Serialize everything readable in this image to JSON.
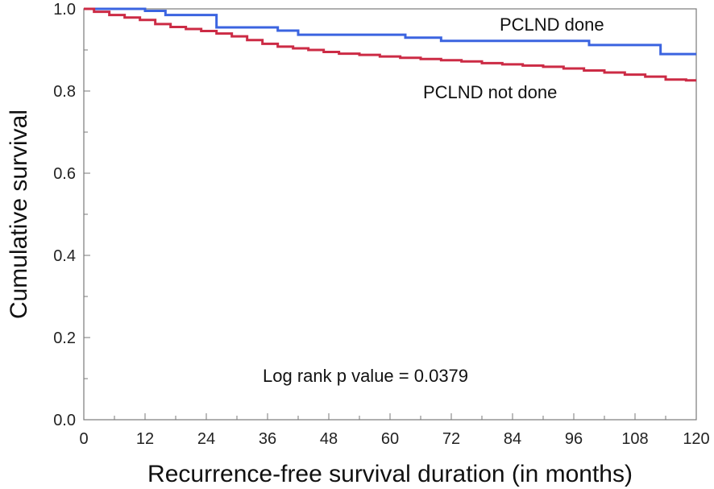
{
  "chart_data": {
    "type": "line",
    "title": "",
    "xlabel": "Recurrence-free survival duration (in months)",
    "ylabel": "Cumulative survival",
    "xlim": [
      0,
      120
    ],
    "ylim": [
      0.0,
      1.0
    ],
    "x_ticks": [
      0,
      12,
      24,
      36,
      48,
      60,
      72,
      84,
      96,
      108,
      120
    ],
    "x_tick_labels": [
      "0",
      "12",
      "24",
      "36",
      "48",
      "60",
      "72",
      "84",
      "96",
      "108",
      "120"
    ],
    "y_ticks": [
      0.0,
      0.2,
      0.4,
      0.6,
      0.8,
      1.0
    ],
    "y_tick_labels": [
      "0.0",
      "0.2",
      "0.4",
      "0.6",
      "0.8",
      "1.0"
    ],
    "grid": false,
    "series": [
      {
        "name": "PCLND done",
        "color": "#3b64e0",
        "step": true,
        "x": [
          0,
          12,
          16,
          26,
          38,
          42,
          63,
          70,
          99,
          113,
          120
        ],
        "values": [
          1.0,
          0.995,
          0.985,
          0.955,
          0.947,
          0.937,
          0.93,
          0.922,
          0.912,
          0.89,
          0.89
        ]
      },
      {
        "name": "PCLND not done",
        "color": "#cc2b45",
        "step": true,
        "x": [
          0,
          2,
          5,
          8,
          11,
          14,
          17,
          20,
          23,
          26,
          29,
          32,
          35,
          38,
          41,
          44,
          47,
          50,
          54,
          58,
          62,
          66,
          70,
          74,
          78,
          82,
          86,
          90,
          94,
          98,
          102,
          106,
          110,
          114,
          118,
          120
        ],
        "values": [
          1.0,
          0.993,
          0.985,
          0.979,
          0.973,
          0.963,
          0.956,
          0.951,
          0.946,
          0.94,
          0.933,
          0.924,
          0.915,
          0.908,
          0.904,
          0.9,
          0.895,
          0.891,
          0.888,
          0.884,
          0.881,
          0.878,
          0.875,
          0.872,
          0.868,
          0.865,
          0.862,
          0.859,
          0.855,
          0.85,
          0.845,
          0.84,
          0.835,
          0.828,
          0.826,
          0.826
        ]
      }
    ],
    "annotations": {
      "done_label": "PCLND done",
      "not_done_label": "PCLND not done",
      "pvalue": "Log rank p value = 0.0379"
    }
  }
}
